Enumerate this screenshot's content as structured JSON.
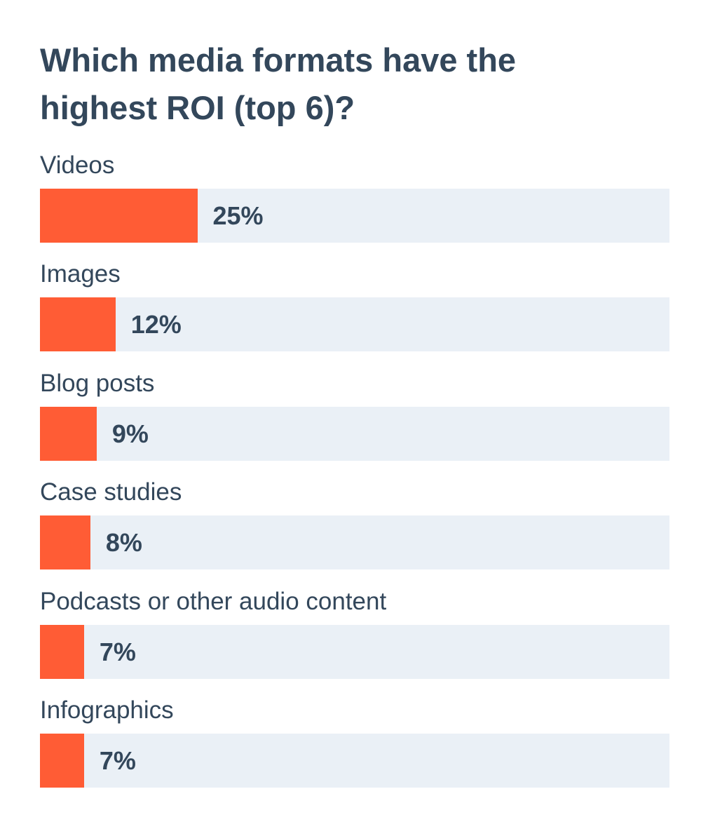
{
  "chart_data": {
    "type": "bar",
    "orientation": "horizontal",
    "title": "Which media formats have the highest ROI (top 6)?",
    "categories": [
      "Videos",
      "Images",
      "Blog posts",
      "Case studies",
      "Podcasts or other audio content",
      "Infographics"
    ],
    "values": [
      25,
      12,
      9,
      8,
      7,
      7
    ],
    "value_labels": [
      "25%",
      "12%",
      "9%",
      "8%",
      "7%",
      "7%"
    ],
    "color": "#ff5c35",
    "xlim": [
      0,
      100
    ]
  }
}
